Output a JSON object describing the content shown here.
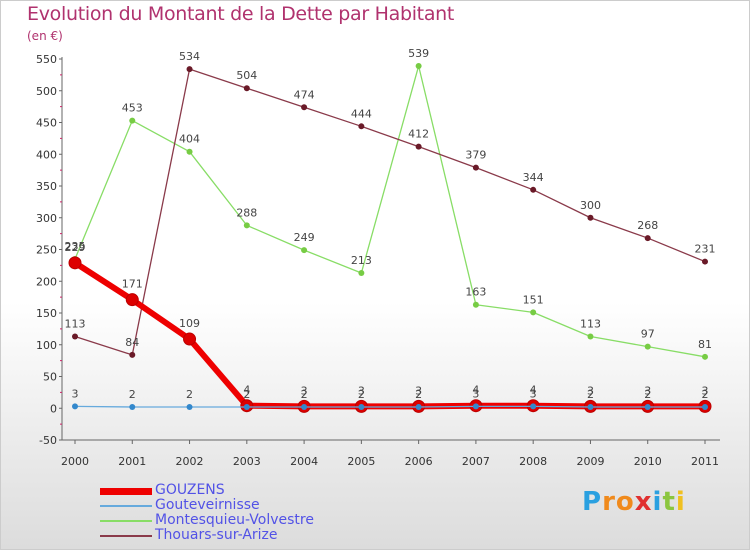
{
  "title": "Evolution du Montant de la Dette par Habitant",
  "subtitle": "(en €)",
  "logo": {
    "letters": [
      "P",
      "r",
      "o",
      "x",
      "i",
      "t",
      "i"
    ],
    "colors": [
      "#2aa0e0",
      "#f08a1c",
      "#f08a1c",
      "#e03030",
      "#2aa0e0",
      "#8cc63f",
      "#f0c020"
    ]
  },
  "chart_data": {
    "type": "line",
    "title": "Evolution du Montant de la Dette par Habitant",
    "ylabel": "(en €)",
    "xlabel": "",
    "ylim": [
      -50,
      550
    ],
    "yticks": [
      -50,
      0,
      50,
      100,
      150,
      200,
      250,
      300,
      350,
      400,
      450,
      500,
      550
    ],
    "categories": [
      "2000",
      "2001",
      "2002",
      "2003",
      "2004",
      "2005",
      "2006",
      "2007",
      "2008",
      "2009",
      "2010",
      "2011"
    ],
    "grid": false,
    "legend": "bottom-left",
    "series": [
      {
        "name": "Montesquieu-Volvestre",
        "color": "#88dd66",
        "marker": "#77cc44",
        "width": 1.3,
        "radius": 3,
        "values": [
          235,
          453,
          404,
          288,
          249,
          213,
          539,
          163,
          151,
          113,
          97,
          81
        ],
        "labels": [
          "235",
          "453",
          "404",
          "288",
          "249",
          "213",
          "539",
          "163",
          "151",
          "113",
          "97",
          "81"
        ]
      },
      {
        "name": "Thouars-sur-Arize",
        "color": "#8a3a4a",
        "marker": "#6a1a28",
        "width": 1.3,
        "radius": 3,
        "values": [
          113,
          84,
          534,
          504,
          474,
          444,
          412,
          379,
          344,
          300,
          268,
          231
        ],
        "labels": [
          "113",
          "84",
          "534",
          "504",
          "474",
          "444",
          "412",
          "379",
          "344",
          "300",
          "268",
          "231"
        ]
      },
      {
        "name": "GOUZENS",
        "color": "#ee0000",
        "marker": "#dd0000",
        "width": 6,
        "radius": 6,
        "values": [
          229,
          171,
          109,
          4,
          3,
          3,
          3,
          4,
          4,
          3,
          3,
          3
        ],
        "labels": [
          "229",
          "171",
          "109",
          "4",
          "3",
          "3",
          "3",
          "4",
          "4",
          "3",
          "3",
          "3"
        ]
      },
      {
        "name": "Gouteveirnisse",
        "color": "#66aadd",
        "marker": "#3388cc",
        "width": 1.3,
        "radius": 3,
        "values": [
          3,
          2,
          2,
          2,
          2,
          2,
          2,
          3,
          3,
          2,
          2,
          2
        ],
        "labels": [
          "3",
          "2",
          "2",
          "2",
          "2",
          "2",
          "2",
          "3",
          "3",
          "2",
          "2",
          "2"
        ]
      }
    ]
  },
  "legend": [
    {
      "label": "GOUZENS",
      "color": "#ee0000",
      "weight": 7
    },
    {
      "label": "Gouteveirnisse",
      "color": "#66aadd",
      "weight": 2
    },
    {
      "label": "Montesquieu-Volvestre",
      "color": "#88dd66",
      "weight": 2
    },
    {
      "label": "Thouars-sur-Arize",
      "color": "#8a3a4a",
      "weight": 2
    }
  ]
}
